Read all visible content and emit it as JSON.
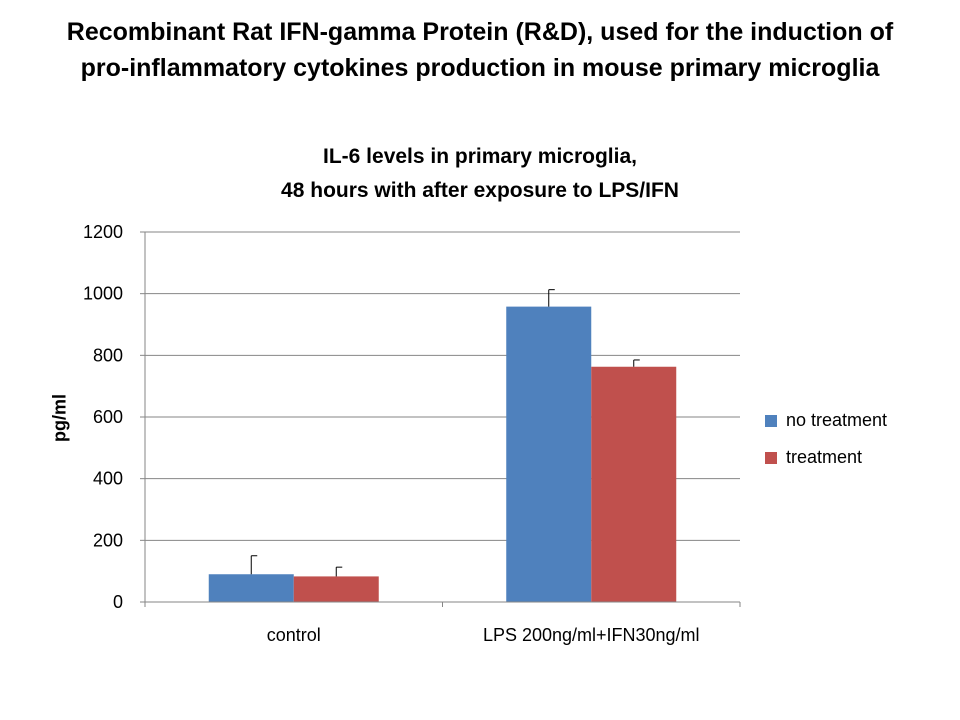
{
  "slide": {
    "title_line1": "Recombinant Rat IFN-gamma Protein (R&D), used for the induction of",
    "title_line2": "pro-inflammatory cytokines production in mouse primary microglia"
  },
  "chart_data": {
    "type": "bar",
    "title_line1": "IL-6 levels in primary microglia,",
    "title_line2": "48 hours with after exposure to LPS/IFN",
    "xlabel": "",
    "ylabel": "pg/ml",
    "categories": [
      "control",
      "LPS 200ng/ml+IFN30ng/ml"
    ],
    "series": [
      {
        "name": "no treatment",
        "color": "#4f81bd",
        "values": [
          90,
          958
        ],
        "errors": [
          60,
          55
        ]
      },
      {
        "name": "treatment",
        "color": "#c0504d",
        "values": [
          83,
          763
        ],
        "errors": [
          30,
          22
        ]
      }
    ],
    "ylim": [
      0,
      1200
    ],
    "yticks": [
      0,
      200,
      400,
      600,
      800,
      1000,
      1200
    ],
    "grid": true,
    "legend_position": "right"
  }
}
